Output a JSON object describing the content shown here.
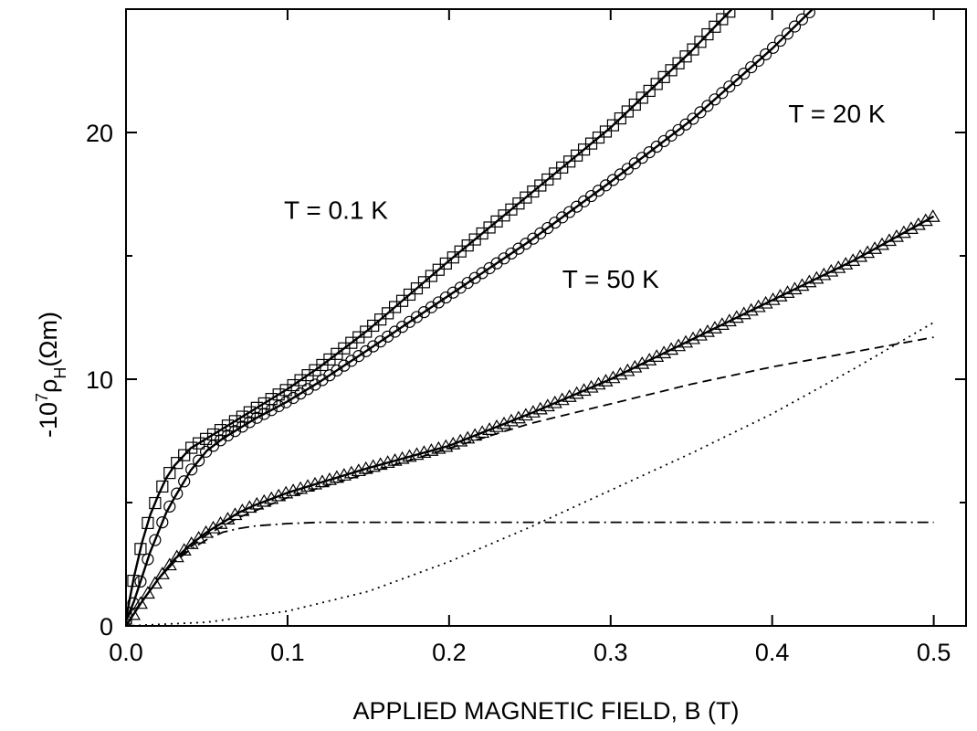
{
  "chart_data": {
    "type": "line",
    "title": "",
    "xlabel": "APPLIED MAGNETIC FIELD, B (T)",
    "ylabel": {
      "prefix": "-10",
      "exp": "7",
      "rho": "ρ",
      "sub": "H",
      "unit": "(Ωm)"
    },
    "xlim": [
      0,
      0.52
    ],
    "ylim": [
      0,
      25
    ],
    "x_ticks": [
      {
        "value": 0.0,
        "label": "0.0"
      },
      {
        "value": 0.1,
        "label": "0.1"
      },
      {
        "value": 0.2,
        "label": "0.2"
      },
      {
        "value": 0.3,
        "label": "0.3"
      },
      {
        "value": 0.4,
        "label": "0.4"
      },
      {
        "value": 0.5,
        "label": "0.5"
      }
    ],
    "y_ticks": [
      {
        "value": 0,
        "label": "0"
      },
      {
        "value": 10,
        "label": "10"
      },
      {
        "value": 20,
        "label": "20"
      }
    ],
    "minor_y_ticks": [
      5,
      15
    ],
    "grid": false,
    "annotations": [
      {
        "text": "T = 0.1 K",
        "x": 0.13,
        "y": 16.5
      },
      {
        "text": "T = 20 K",
        "x": 0.44,
        "y": 20.4
      },
      {
        "text": "T = 50 K",
        "x": 0.3,
        "y": 13.7
      }
    ],
    "series": [
      {
        "name": "T = 0.1 K",
        "marker": "square",
        "line": "solid",
        "x": [
          0.0,
          0.005,
          0.01,
          0.015,
          0.02,
          0.025,
          0.03,
          0.04,
          0.05,
          0.06,
          0.07,
          0.08,
          0.1,
          0.12,
          0.15,
          0.2,
          0.25,
          0.3,
          0.35,
          0.375
        ],
        "y": [
          0.3,
          2.0,
          3.4,
          4.5,
          5.3,
          6.0,
          6.5,
          7.2,
          7.6,
          8.0,
          8.4,
          8.8,
          9.6,
          10.5,
          12.0,
          14.8,
          17.5,
          20.2,
          23.3,
          25.0
        ]
      },
      {
        "name": "T = 20 K",
        "marker": "circle",
        "line": "solid",
        "x": [
          0.0,
          0.005,
          0.01,
          0.015,
          0.02,
          0.025,
          0.03,
          0.04,
          0.05,
          0.06,
          0.07,
          0.08,
          0.1,
          0.12,
          0.15,
          0.2,
          0.25,
          0.3,
          0.35,
          0.4,
          0.425
        ],
        "y": [
          0.2,
          1.0,
          2.0,
          3.0,
          3.8,
          4.6,
          5.2,
          6.3,
          7.1,
          7.6,
          8.0,
          8.4,
          9.1,
          9.9,
          11.2,
          13.4,
          15.6,
          18.0,
          20.5,
          23.4,
          25.0
        ]
      },
      {
        "name": "T = 50 K",
        "marker": "triangle",
        "line": "solid",
        "x": [
          0.0,
          0.005,
          0.01,
          0.02,
          0.03,
          0.04,
          0.05,
          0.06,
          0.07,
          0.08,
          0.1,
          0.12,
          0.15,
          0.2,
          0.25,
          0.3,
          0.35,
          0.4,
          0.45,
          0.5
        ],
        "y": [
          0.0,
          0.5,
          1.0,
          1.9,
          2.7,
          3.3,
          3.8,
          4.2,
          4.6,
          4.9,
          5.4,
          5.8,
          6.4,
          7.3,
          8.6,
          10.0,
          11.6,
          13.2,
          14.8,
          16.6
        ]
      },
      {
        "name": "",
        "marker": "none",
        "line": "dashed",
        "x": [
          0.0,
          0.01,
          0.02,
          0.03,
          0.04,
          0.05,
          0.07,
          0.1,
          0.15,
          0.2,
          0.25,
          0.3,
          0.35,
          0.4,
          0.45,
          0.5
        ],
        "y": [
          0.0,
          1.0,
          1.9,
          2.6,
          3.2,
          3.7,
          4.4,
          5.2,
          6.2,
          7.2,
          8.2,
          9.0,
          9.8,
          10.5,
          11.1,
          11.7
        ]
      },
      {
        "name": "",
        "marker": "none",
        "line": "dashdot",
        "x": [
          0.0,
          0.01,
          0.02,
          0.03,
          0.04,
          0.05,
          0.06,
          0.07,
          0.08,
          0.1,
          0.12,
          0.15,
          0.2,
          0.3,
          0.4,
          0.5
        ],
        "y": [
          0.0,
          1.0,
          1.9,
          2.6,
          3.1,
          3.5,
          3.8,
          3.95,
          4.05,
          4.15,
          4.2,
          4.2,
          4.2,
          4.2,
          4.2,
          4.2
        ]
      },
      {
        "name": "",
        "marker": "none",
        "line": "dotted",
        "x": [
          0.0,
          0.05,
          0.1,
          0.15,
          0.2,
          0.25,
          0.3,
          0.35,
          0.4,
          0.45,
          0.5
        ],
        "y": [
          0.0,
          0.15,
          0.6,
          1.4,
          2.6,
          4.0,
          5.5,
          7.0,
          8.6,
          10.4,
          12.3
        ]
      }
    ],
    "colors": {
      "line": "#000000",
      "background": "#ffffff"
    }
  }
}
